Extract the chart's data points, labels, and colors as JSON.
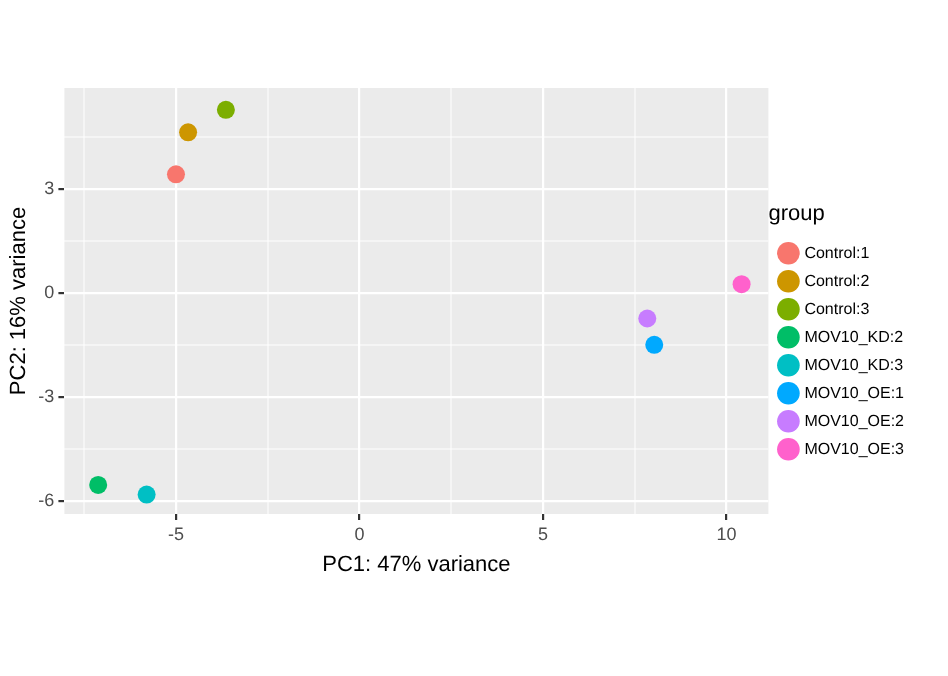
{
  "chart_data": {
    "type": "scatter",
    "xlabel": "PC1: 47% variance",
    "ylabel": "PC2: 16% variance",
    "legend_title": "group",
    "xlim": [
      -8.04,
      11.14
    ],
    "ylim": [
      -6.37,
      5.92
    ],
    "xticks": [
      {
        "value": -7.5,
        "label": null
      },
      -5,
      {
        "value": -2.5,
        "label": null
      },
      0,
      {
        "value": 2.5,
        "label": null
      },
      5,
      {
        "value": 7.5,
        "label": null
      },
      10
    ],
    "yticks": [
      -6,
      {
        "value": -4.5,
        "label": null
      },
      -3,
      {
        "value": -1.5,
        "label": null
      },
      0,
      {
        "value": 1.5,
        "label": null
      },
      3,
      {
        "value": 4.5,
        "label": null
      }
    ],
    "grid": true,
    "legend": "right",
    "marker": "circle",
    "series": [
      {
        "name": "Control:1",
        "color": "#f8766d",
        "x": [
          -5.0
        ],
        "values": [
          3.43
        ]
      },
      {
        "name": "Control:2",
        "color": "#cd9600",
        "x": [
          -4.67
        ],
        "values": [
          4.64
        ]
      },
      {
        "name": "Control:3",
        "color": "#7cae00",
        "x": [
          -3.64
        ],
        "values": [
          5.29
        ]
      },
      {
        "name": "MOV10_KD:2",
        "color": "#00be67",
        "x": [
          -7.12
        ],
        "values": [
          -5.53
        ]
      },
      {
        "name": "MOV10_KD:3",
        "color": "#00bfc4",
        "x": [
          -5.8
        ],
        "values": [
          -5.81
        ]
      },
      {
        "name": "MOV10_OE:1",
        "color": "#00a9ff",
        "x": [
          8.03
        ],
        "values": [
          -1.49
        ]
      },
      {
        "name": "MOV10_OE:2",
        "color": "#c77cff",
        "x": [
          7.84
        ],
        "values": [
          -0.73
        ]
      },
      {
        "name": "MOV10_OE:3",
        "color": "#ff61cc",
        "x": [
          10.41
        ],
        "values": [
          0.26
        ]
      }
    ]
  }
}
